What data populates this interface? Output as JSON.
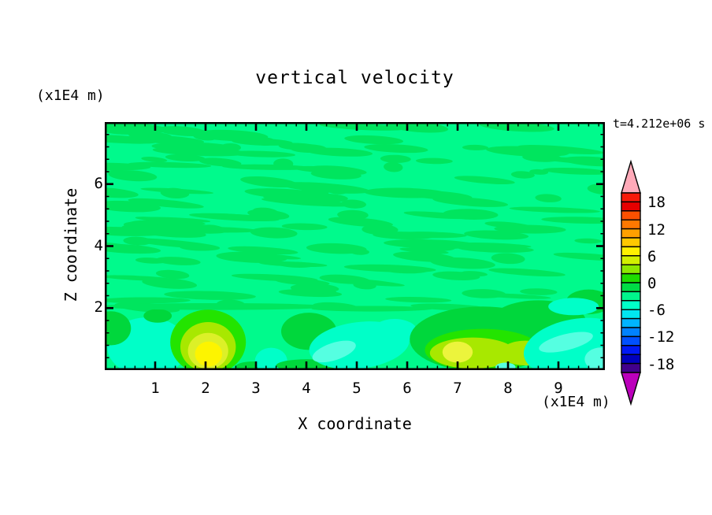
{
  "figure": {
    "title": "vertical velocity",
    "top_left_unit": "(x1E4 m)",
    "time_stamp": "t=4.212e+06 s",
    "x_axis_label": "X coordinate",
    "x_axis_unit": "(x1E4 m)",
    "z_axis_label": "Z coordinate"
  },
  "chart_data": {
    "type": "filled-contour",
    "title": "vertical velocity",
    "time_label": "t=4.212e+06 s",
    "x_axis": {
      "label": "X coordinate",
      "unit": "(x1E4 m)",
      "range": [
        0,
        9.92
      ],
      "major_ticks": [
        1,
        2,
        3,
        4,
        5,
        6,
        7,
        8,
        9
      ],
      "minor_tick_interval": 0.2
    },
    "z_axis": {
      "label": "Z coordinate",
      "unit": "(x1E4 m)",
      "range": [
        0,
        8
      ],
      "major_ticks": [
        2,
        4,
        6
      ],
      "minor_tick_interval": 0.4
    },
    "contour_interval": 2,
    "colorbar": {
      "orientation": "vertical",
      "value_range": [
        -20,
        20
      ],
      "tick_labels": [
        "18",
        "12",
        "6",
        "0",
        "-6",
        "-12",
        "-18"
      ],
      "label_every_n_bands": 3,
      "band_colors_top_to_bottom": [
        "#f71a0a",
        "#e50000",
        "#fc5000",
        "#ff7800",
        "#ffa000",
        "#ffc800",
        "#fff000",
        "#d2f000",
        "#8ce800",
        "#1edc00",
        "#00dc46",
        "#00f58c",
        "#00ffc8",
        "#00e6f0",
        "#00b4ff",
        "#0082ff",
        "#0050ff",
        "#0019f5",
        "#0000be",
        "#41008c"
      ],
      "over_range_color": "#ffaab9",
      "under_range_color": "#bb00bb"
    },
    "background_color": "#00fa8c",
    "texture": {
      "streak_color": "#00e55e",
      "seed": 11,
      "count": 150
    },
    "features": [
      {
        "x": 0.85,
        "z": 0.75,
        "rx": 0.8,
        "rz": 0.95,
        "color": "#00ffc8"
      },
      {
        "x": 0.12,
        "z": 1.35,
        "rx": 0.4,
        "rz": 0.55,
        "color": "#00d73c"
      },
      {
        "x": 1.05,
        "z": 1.75,
        "rx": 0.28,
        "rz": 0.22,
        "color": "#00d73c"
      },
      {
        "x": 2.2,
        "z": 2.05,
        "rx": 2.3,
        "rz": 0.11,
        "color": "#00e55e"
      },
      {
        "x": 5.3,
        "z": 1.98,
        "rx": 1.2,
        "rz": 0.09,
        "color": "#00e55e"
      },
      {
        "x": 0.8,
        "z": 2.25,
        "rx": 0.9,
        "rz": 0.1,
        "color": "#00e55e"
      },
      {
        "x": 2.05,
        "z": 0.9,
        "rx": 0.75,
        "rz": 1.05,
        "color": "#23e400"
      },
      {
        "x": 2.05,
        "z": 0.75,
        "rx": 0.55,
        "rz": 0.8,
        "color": "#a8e800"
      },
      {
        "x": 2.05,
        "z": 0.62,
        "rx": 0.4,
        "rz": 0.58,
        "color": "#dcf028"
      },
      {
        "x": 2.06,
        "z": 0.52,
        "rx": 0.27,
        "rz": 0.4,
        "color": "#fdf400"
      },
      {
        "x": 2.95,
        "z": 0.12,
        "rx": 0.35,
        "rz": 0.16,
        "color": "#00d73c"
      },
      {
        "x": 3.3,
        "z": 0.3,
        "rx": 0.32,
        "rz": 0.42,
        "color": "#00ffc8"
      },
      {
        "x": 4.05,
        "z": 1.25,
        "rx": 0.55,
        "rz": 0.6,
        "color": "#00d73c"
      },
      {
        "x": 4.0,
        "z": 0.15,
        "rx": 0.6,
        "rz": 0.2,
        "color": "#00d73c"
      },
      {
        "x": 5.05,
        "z": 0.8,
        "rx": 1.0,
        "rz": 0.75,
        "rot": -7,
        "color": "#00ffc8"
      },
      {
        "x": 5.75,
        "z": 1.25,
        "rx": 0.45,
        "rz": 0.4,
        "color": "#00ffc8"
      },
      {
        "x": 4.55,
        "z": 0.6,
        "rx": 0.45,
        "rz": 0.28,
        "rot": -18,
        "color": "#55ffe1"
      },
      {
        "x": 7.5,
        "z": 1.0,
        "rx": 1.45,
        "rz": 1.05,
        "color": "#00d73c"
      },
      {
        "x": 8.6,
        "z": 1.55,
        "rx": 0.95,
        "rz": 0.7,
        "color": "#00d73c"
      },
      {
        "x": 9.6,
        "z": 2.2,
        "rx": 0.45,
        "rz": 0.4,
        "color": "#00d73c"
      },
      {
        "x": 7.5,
        "z": 0.65,
        "rx": 1.15,
        "rz": 0.68,
        "color": "#23e400"
      },
      {
        "x": 7.3,
        "z": 0.55,
        "rx": 0.85,
        "rz": 0.5,
        "color": "#a8e800"
      },
      {
        "x": 8.35,
        "z": 0.55,
        "rx": 0.5,
        "rz": 0.4,
        "color": "#a8e800"
      },
      {
        "x": 7.0,
        "z": 0.58,
        "rx": 0.3,
        "rz": 0.34,
        "color": "#ecf43c"
      },
      {
        "x": 7.95,
        "z": 0.1,
        "rx": 0.2,
        "rz": 0.14,
        "color": "#55ffe1"
      },
      {
        "x": 9.35,
        "z": 0.75,
        "rx": 1.05,
        "rz": 0.9,
        "rot": -10,
        "color": "#00ffc8"
      },
      {
        "x": 9.3,
        "z": 2.05,
        "rx": 0.5,
        "rz": 0.28,
        "color": "#00ffc8"
      },
      {
        "x": 9.15,
        "z": 0.9,
        "rx": 0.55,
        "rz": 0.26,
        "rot": -14,
        "color": "#55ffe1"
      },
      {
        "x": 9.85,
        "z": 0.35,
        "rx": 0.33,
        "rz": 0.38,
        "color": "#55ffe1"
      }
    ]
  }
}
